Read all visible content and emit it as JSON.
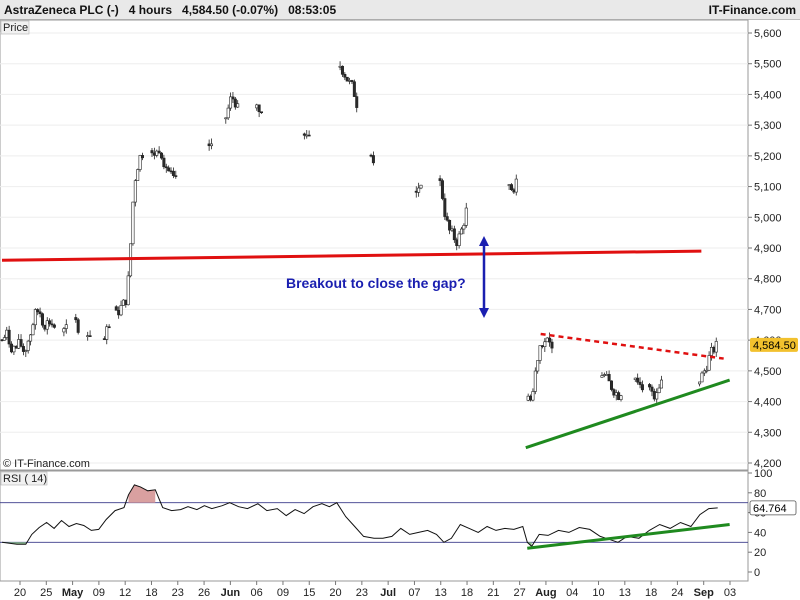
{
  "header": {
    "title": "AstraZeneca PLC (-)   4 hours   4,584.50 (-0.07%)   08:53:05",
    "brand": "IT-Finance.com"
  },
  "price_panel_label": "Price",
  "rsi_panel_label": "RSI ( 14)",
  "watermark": "© IT-Finance.com",
  "last_price_label": "4,584.50",
  "last_rsi_label": "64.764",
  "annotation": "Breakout to close the gap?",
  "colors": {
    "candle_up": "#ffffff",
    "candle_down": "#2a2a2a",
    "support_red": "#e01010",
    "support_green": "#1f8a1f",
    "resistance_dash": "#e01010",
    "arrow": "#1a1fb0",
    "price_tag": "#f2c12e",
    "rsi_line": "#111111",
    "rsi_overbought_fill": "#d9a0a0",
    "rsi_oversold_fill": "#8fbf8f"
  },
  "chart_data": [
    {
      "type": "candlestick",
      "title": "AstraZeneca PLC (-)",
      "timeframe": "4 hours",
      "ylim": [
        4200,
        5600
      ],
      "yticks": [
        4200,
        4300,
        4400,
        4500,
        4600,
        4700,
        4800,
        4900,
        5000,
        5100,
        5200,
        5300,
        5400,
        5500,
        5600
      ],
      "ytick_labels": [
        "4,200",
        "4,300",
        "4,400",
        "4,500",
        "4,600",
        "4,700",
        "4,800",
        "4,900",
        "5,000",
        "5,100",
        "5,200",
        "5,300",
        "5,400",
        "5,500",
        "5,600"
      ],
      "xtick_labels": [
        {
          "label": "20",
          "bold": false
        },
        {
          "label": "25",
          "bold": false
        },
        {
          "label": "May",
          "bold": true
        },
        {
          "label": "09",
          "bold": false
        },
        {
          "label": "12",
          "bold": false
        },
        {
          "label": "18",
          "bold": false
        },
        {
          "label": "23",
          "bold": false
        },
        {
          "label": "26",
          "bold": false
        },
        {
          "label": "Jun",
          "bold": true
        },
        {
          "label": "06",
          "bold": false
        },
        {
          "label": "09",
          "bold": false
        },
        {
          "label": "15",
          "bold": false
        },
        {
          "label": "20",
          "bold": false
        },
        {
          "label": "23",
          "bold": false
        },
        {
          "label": "Jul",
          "bold": true
        },
        {
          "label": "07",
          "bold": false
        },
        {
          "label": "13",
          "bold": false
        },
        {
          "label": "18",
          "bold": false
        },
        {
          "label": "21",
          "bold": false
        },
        {
          "label": "27",
          "bold": false
        },
        {
          "label": "Aug",
          "bold": true
        },
        {
          "label": "04",
          "bold": false
        },
        {
          "label": "10",
          "bold": false
        },
        {
          "label": "13",
          "bold": false
        },
        {
          "label": "18",
          "bold": false
        },
        {
          "label": "24",
          "bold": false
        },
        {
          "label": "Sep",
          "bold": true
        },
        {
          "label": "03",
          "bold": false
        }
      ],
      "last_price": 4584.5,
      "price_path": [
        [
          0,
          4600
        ],
        [
          0.006,
          4620
        ],
        [
          0.012,
          4580
        ],
        [
          0.018,
          4570
        ],
        [
          0.024,
          4590
        ],
        [
          0.03,
          4560
        ],
        [
          0.038,
          4620
        ],
        [
          0.044,
          4680
        ],
        [
          0.05,
          4700
        ],
        [
          0.056,
          4650
        ],
        [
          0.064,
          4660
        ],
        [
          0.072,
          4640
        ],
        [
          0.08,
          4620
        ],
        [
          0.088,
          4640
        ],
        [
          0.096,
          4660
        ],
        [
          0.104,
          4640
        ],
        [
          0.112,
          4630
        ],
        [
          0.12,
          4620
        ],
        [
          0.128,
          4610
        ],
        [
          0.136,
          4600
        ],
        [
          0.144,
          4640
        ],
        [
          0.152,
          4680
        ],
        [
          0.158,
          4700
        ],
        [
          0.164,
          4720
        ],
        [
          0.168,
          4740
        ],
        [
          0.172,
          4880
        ],
        [
          0.176,
          5050
        ],
        [
          0.18,
          5150
        ],
        [
          0.186,
          5200
        ],
        [
          0.192,
          5220
        ],
        [
          0.2,
          5240
        ],
        [
          0.206,
          5200
        ],
        [
          0.212,
          5230
        ],
        [
          0.218,
          5180
        ],
        [
          0.224,
          5150
        ],
        [
          0.23,
          5120
        ],
        [
          0.236,
          5110
        ],
        [
          0.244,
          5130
        ],
        [
          0.252,
          5150
        ],
        [
          0.26,
          5190
        ],
        [
          0.268,
          5210
        ],
        [
          0.276,
          5230
        ],
        [
          0.284,
          5240
        ],
        [
          0.292,
          5250
        ],
        [
          0.3,
          5300
        ],
        [
          0.306,
          5380
        ],
        [
          0.312,
          5390
        ],
        [
          0.318,
          5340
        ],
        [
          0.326,
          5320
        ],
        [
          0.334,
          5330
        ],
        [
          0.342,
          5360
        ],
        [
          0.35,
          5340
        ],
        [
          0.358,
          5380
        ],
        [
          0.366,
          5300
        ],
        [
          0.374,
          5320
        ],
        [
          0.382,
          5290
        ],
        [
          0.39,
          5300
        ],
        [
          0.398,
          5320
        ],
        [
          0.406,
          5280
        ],
        [
          0.414,
          5270
        ],
        [
          0.422,
          5330
        ],
        [
          0.43,
          5400
        ],
        [
          0.438,
          5460
        ],
        [
          0.446,
          5480
        ],
        [
          0.454,
          5500
        ],
        [
          0.46,
          5470
        ],
        [
          0.466,
          5440
        ],
        [
          0.472,
          5420
        ],
        [
          0.478,
          5360
        ],
        [
          0.486,
          5300
        ],
        [
          0.494,
          5240
        ],
        [
          0.5,
          5180
        ],
        [
          0.508,
          5160
        ],
        [
          0.516,
          5140
        ],
        [
          0.524,
          5150
        ],
        [
          0.532,
          5130
        ],
        [
          0.54,
          5100
        ],
        [
          0.548,
          5120
        ],
        [
          0.556,
          5090
        ],
        [
          0.564,
          5110
        ],
        [
          0.572,
          5070
        ],
        [
          0.58,
          5090
        ],
        [
          0.588,
          5150
        ],
        [
          0.594,
          5030
        ],
        [
          0.6,
          4960
        ],
        [
          0.606,
          4940
        ],
        [
          0.612,
          4920
        ],
        [
          0.618,
          4960
        ],
        [
          0.624,
          5020
        ],
        [
          0.632,
          5060
        ],
        [
          0.64,
          5080
        ],
        [
          0.648,
          5100
        ],
        [
          0.656,
          5150
        ],
        [
          0.664,
          5120
        ],
        [
          0.672,
          5100
        ],
        [
          0.68,
          5090
        ],
        [
          0.688,
          5100
        ],
        [
          0.694,
          5110
        ],
        [
          0.706,
          4420
        ],
        [
          0.712,
          4400
        ],
        [
          0.718,
          4520
        ],
        [
          0.722,
          4580
        ],
        [
          0.728,
          4600
        ],
        [
          0.734,
          4590
        ],
        [
          0.74,
          4560
        ],
        [
          0.748,
          4520
        ],
        [
          0.756,
          4560
        ],
        [
          0.764,
          4580
        ],
        [
          0.772,
          4540
        ],
        [
          0.78,
          4560
        ],
        [
          0.788,
          4580
        ],
        [
          0.796,
          4560
        ],
        [
          0.804,
          4520
        ],
        [
          0.81,
          4480
        ],
        [
          0.816,
          4460
        ],
        [
          0.822,
          4440
        ],
        [
          0.828,
          4420
        ],
        [
          0.834,
          4440
        ],
        [
          0.842,
          4480
        ],
        [
          0.85,
          4500
        ],
        [
          0.856,
          4460
        ],
        [
          0.862,
          4440
        ],
        [
          0.87,
          4460
        ],
        [
          0.876,
          4420
        ],
        [
          0.882,
          4450
        ],
        [
          0.888,
          4480
        ],
        [
          0.896,
          4500
        ],
        [
          0.904,
          4540
        ],
        [
          0.912,
          4550
        ],
        [
          0.92,
          4530
        ],
        [
          0.928,
          4480
        ],
        [
          0.936,
          4460
        ],
        [
          0.944,
          4500
        ],
        [
          0.95,
          4540
        ],
        [
          0.956,
          4570
        ],
        [
          0.962,
          4584.5
        ]
      ],
      "support_line_red": [
        [
          0,
          4860
        ],
        [
          0.94,
          4890
        ]
      ],
      "support_line_green": [
        [
          0.704,
          4250
        ],
        [
          0.978,
          4470
        ]
      ],
      "resistance_line_dashed": [
        [
          0.724,
          4620
        ],
        [
          0.97,
          4540
        ]
      ]
    },
    {
      "type": "line",
      "title": "RSI ( 14)",
      "ylim": [
        0,
        100
      ],
      "yticks": [
        0,
        20,
        40,
        60,
        80,
        100
      ],
      "levels": [
        30,
        70
      ],
      "last_value": 64.764,
      "rsi_path": [
        [
          0,
          30
        ],
        [
          0.02,
          28
        ],
        [
          0.032,
          28
        ],
        [
          0.04,
          38
        ],
        [
          0.05,
          45
        ],
        [
          0.06,
          50
        ],
        [
          0.07,
          44
        ],
        [
          0.08,
          52
        ],
        [
          0.09,
          46
        ],
        [
          0.1,
          49
        ],
        [
          0.11,
          47
        ],
        [
          0.12,
          42
        ],
        [
          0.13,
          43
        ],
        [
          0.14,
          53
        ],
        [
          0.152,
          62
        ],
        [
          0.164,
          65
        ],
        [
          0.17,
          78
        ],
        [
          0.178,
          88
        ],
        [
          0.186,
          86
        ],
        [
          0.196,
          82
        ],
        [
          0.206,
          83
        ],
        [
          0.216,
          65
        ],
        [
          0.228,
          62
        ],
        [
          0.24,
          63
        ],
        [
          0.25,
          66
        ],
        [
          0.262,
          63
        ],
        [
          0.272,
          67
        ],
        [
          0.282,
          64
        ],
        [
          0.296,
          67
        ],
        [
          0.306,
          70
        ],
        [
          0.318,
          66
        ],
        [
          0.33,
          64
        ],
        [
          0.344,
          69
        ],
        [
          0.356,
          62
        ],
        [
          0.37,
          64
        ],
        [
          0.382,
          57
        ],
        [
          0.394,
          63
        ],
        [
          0.406,
          59
        ],
        [
          0.418,
          66
        ],
        [
          0.43,
          69
        ],
        [
          0.44,
          66
        ],
        [
          0.45,
          70
        ],
        [
          0.462,
          56
        ],
        [
          0.474,
          46
        ],
        [
          0.486,
          36
        ],
        [
          0.5,
          34
        ],
        [
          0.512,
          34
        ],
        [
          0.524,
          36
        ],
        [
          0.536,
          44
        ],
        [
          0.548,
          38
        ],
        [
          0.56,
          40
        ],
        [
          0.572,
          42
        ],
        [
          0.584,
          38
        ],
        [
          0.594,
          30
        ],
        [
          0.604,
          34
        ],
        [
          0.616,
          48
        ],
        [
          0.628,
          44
        ],
        [
          0.64,
          40
        ],
        [
          0.652,
          46
        ],
        [
          0.664,
          42
        ],
        [
          0.676,
          44
        ],
        [
          0.688,
          43
        ],
        [
          0.7,
          46
        ],
        [
          0.706,
          30
        ],
        [
          0.712,
          26
        ],
        [
          0.722,
          38
        ],
        [
          0.734,
          37
        ],
        [
          0.748,
          42
        ],
        [
          0.762,
          40
        ],
        [
          0.776,
          45
        ],
        [
          0.79,
          43
        ],
        [
          0.804,
          36
        ],
        [
          0.816,
          33
        ],
        [
          0.828,
          30
        ],
        [
          0.84,
          36
        ],
        [
          0.856,
          34
        ],
        [
          0.87,
          42
        ],
        [
          0.884,
          48
        ],
        [
          0.898,
          44
        ],
        [
          0.912,
          50
        ],
        [
          0.926,
          46
        ],
        [
          0.938,
          58
        ],
        [
          0.95,
          64
        ],
        [
          0.962,
          64.764
        ]
      ],
      "support_line": [
        [
          0.706,
          24
        ],
        [
          0.978,
          48
        ]
      ]
    }
  ]
}
